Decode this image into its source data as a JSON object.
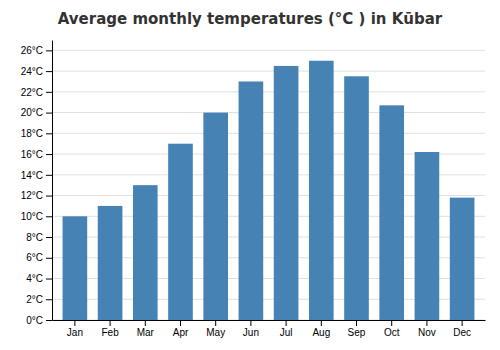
{
  "chart_data": {
    "type": "bar",
    "title": "Average monthly temperatures (°C ) in Kūbar",
    "categories": [
      "Jan",
      "Feb",
      "Mar",
      "Apr",
      "May",
      "Jun",
      "Jul",
      "Aug",
      "Sep",
      "Oct",
      "Nov",
      "Dec"
    ],
    "values": [
      10.0,
      11.0,
      13.0,
      17.0,
      20.0,
      23.0,
      24.5,
      25.0,
      23.5,
      20.7,
      16.2,
      11.8
    ],
    "ylim": [
      0,
      27
    ],
    "yticks": [
      {
        "value": 0,
        "label": "0°C"
      },
      {
        "value": 2,
        "label": "2°C"
      },
      {
        "value": 4,
        "label": "4°C"
      },
      {
        "value": 6,
        "label": "6°C"
      },
      {
        "value": 8,
        "label": "8°C"
      },
      {
        "value": 10,
        "label": "10°C"
      },
      {
        "value": 12,
        "label": "12°C"
      },
      {
        "value": 14,
        "label": "14°C"
      },
      {
        "value": 16,
        "label": "16°C"
      },
      {
        "value": 18,
        "label": "18°C"
      },
      {
        "value": 20,
        "label": "20°C"
      },
      {
        "value": 22,
        "label": "22°C"
      },
      {
        "value": 24,
        "label": "24°C"
      },
      {
        "value": 26,
        "label": "26°C"
      }
    ],
    "grid": true
  }
}
